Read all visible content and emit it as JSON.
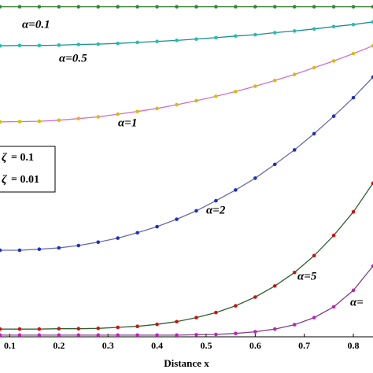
{
  "chart_data": {
    "type": "line",
    "x": [
      0.08,
      0.12,
      0.16,
      0.2,
      0.24,
      0.28,
      0.32,
      0.36,
      0.4,
      0.44,
      0.48,
      0.52,
      0.56,
      0.6,
      0.64,
      0.68,
      0.72,
      0.76,
      0.8,
      0.84
    ],
    "xlim": [
      0.08,
      0.84
    ],
    "xticks": [
      0.1,
      0.2,
      0.3,
      0.4,
      0.5,
      0.6,
      0.7,
      0.8
    ],
    "ylim": [
      0,
      1
    ],
    "xlabel": "Distance x",
    "annotations": [
      "= 0.1",
      "= 0.01"
    ],
    "series": [
      {
        "name": "α=0.1",
        "color": "#2e7d2e",
        "marker_color": "#2e8b2e",
        "values": [
          0.98,
          0.98,
          0.98,
          0.98,
          0.98,
          0.98,
          0.98,
          0.98,
          0.98,
          0.98,
          0.98,
          0.98,
          0.98,
          0.98,
          0.98,
          0.98,
          0.98,
          0.98,
          0.98,
          0.98
        ]
      },
      {
        "name": "α=0.5",
        "color": "#1a8f8f",
        "marker_color": "#20c0b0",
        "values": [
          0.864,
          0.865,
          0.865,
          0.866,
          0.868,
          0.869,
          0.871,
          0.874,
          0.877,
          0.88,
          0.884,
          0.888,
          0.893,
          0.897,
          0.903,
          0.908,
          0.914,
          0.921,
          0.927,
          0.935
        ]
      },
      {
        "name": "α=1",
        "color": "#d070d0",
        "marker_color": "#d4c000",
        "values": [
          0.638,
          0.639,
          0.64,
          0.643,
          0.648,
          0.653,
          0.661,
          0.669,
          0.678,
          0.689,
          0.701,
          0.714,
          0.728,
          0.744,
          0.761,
          0.779,
          0.799,
          0.819,
          0.841,
          0.864
        ]
      },
      {
        "name": "α=2",
        "color": "#6a6ab0",
        "marker_color": "#1f2fc0",
        "values": [
          0.257,
          0.257,
          0.26,
          0.264,
          0.271,
          0.281,
          0.293,
          0.309,
          0.327,
          0.349,
          0.374,
          0.404,
          0.436,
          0.471,
          0.512,
          0.555,
          0.603,
          0.655,
          0.71,
          0.771
        ]
      },
      {
        "name": "α=5",
        "color": "#306030",
        "marker_color": "#d01010",
        "values": [
          0.023,
          0.023,
          0.023,
          0.024,
          0.024,
          0.025,
          0.028,
          0.031,
          0.037,
          0.045,
          0.057,
          0.072,
          0.092,
          0.118,
          0.151,
          0.191,
          0.241,
          0.301,
          0.371,
          0.456
        ]
      },
      {
        "name": "α=",
        "color": "#804080",
        "marker_color": "#c020c0",
        "values": [
          0.005,
          0.005,
          0.005,
          0.005,
          0.005,
          0.005,
          0.005,
          0.005,
          0.005,
          0.005,
          0.006,
          0.007,
          0.01,
          0.015,
          0.023,
          0.036,
          0.057,
          0.089,
          0.138,
          0.21
        ]
      }
    ]
  }
}
